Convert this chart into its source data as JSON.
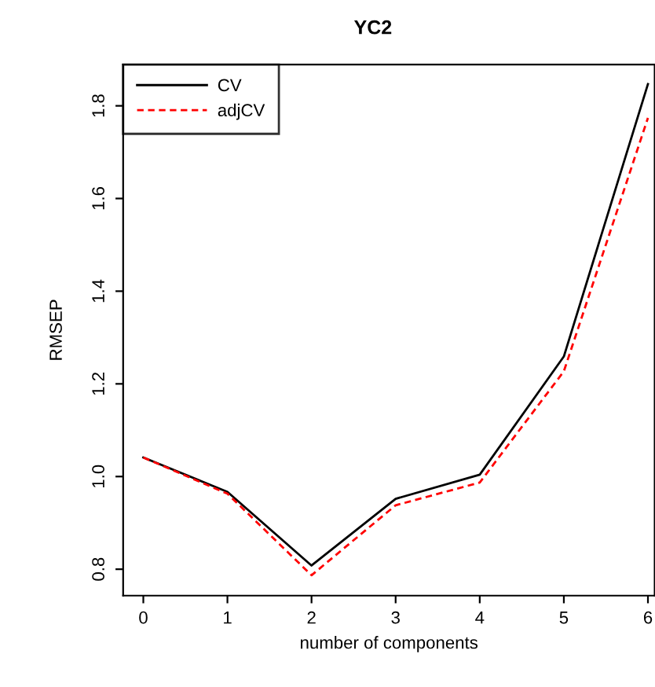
{
  "chart_data": {
    "type": "line",
    "title": "YC2",
    "xlabel": "number of components",
    "ylabel": "RMSEP",
    "x": [
      0,
      1,
      2,
      3,
      4,
      5,
      6
    ],
    "series": [
      {
        "name": "CV",
        "color": "#000000",
        "line_style": "solid",
        "values": [
          1.041,
          0.967,
          0.808,
          0.952,
          1.004,
          1.259,
          1.847
        ]
      },
      {
        "name": "adjCV",
        "color": "#ff0000",
        "line_style": "dashed",
        "values": [
          1.041,
          0.963,
          0.787,
          0.938,
          0.987,
          1.227,
          1.774
        ]
      }
    ],
    "xlim": [
      -0.24,
      6.08
    ],
    "xticks": [
      0,
      1,
      2,
      3,
      4,
      5,
      6
    ],
    "ylim": [
      0.743,
      1.889
    ],
    "yticks": [
      0.8,
      {
        "value": 1.0,
        "label": "1.0"
      },
      1.2,
      1.4,
      1.6,
      1.8
    ],
    "grid": false,
    "legend": "top left",
    "marker": "none"
  }
}
